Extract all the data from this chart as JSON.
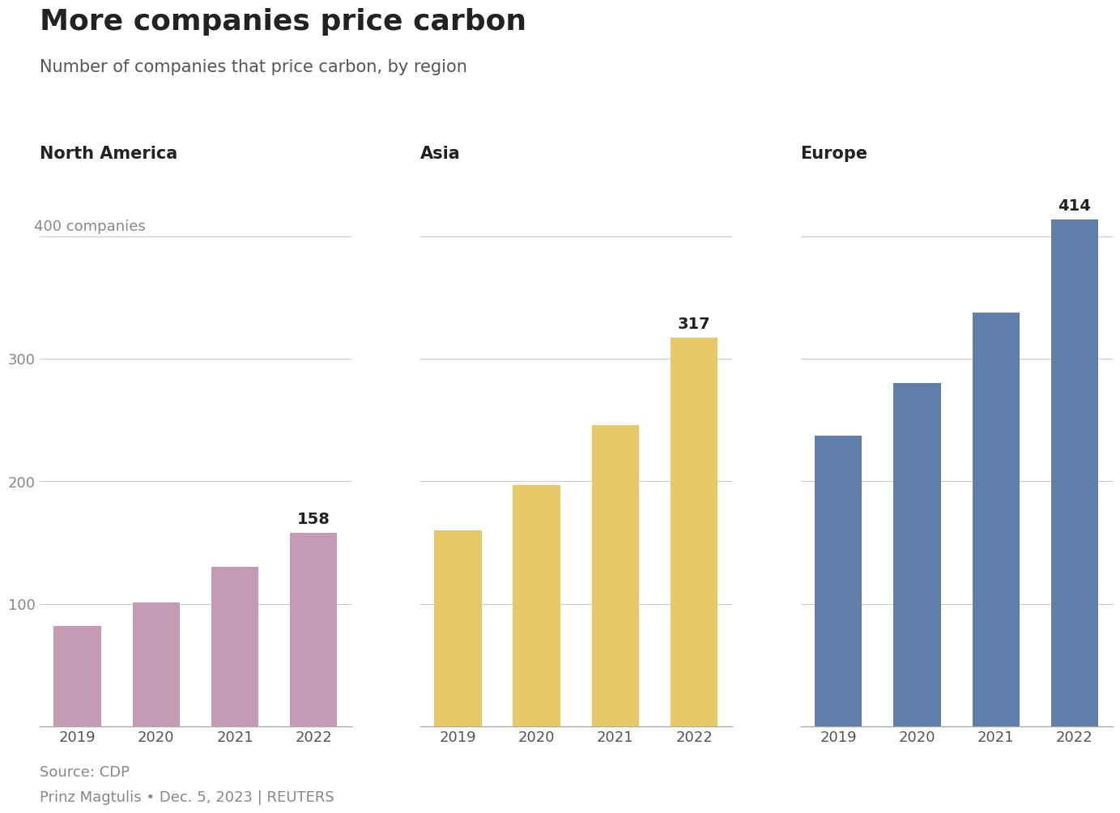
{
  "title": "More companies price carbon",
  "subtitle": "Number of companies that price carbon, by region",
  "source": "Source: CDP",
  "author": "Prinz Magtulis • Dec. 5, 2023 | REUTERS",
  "regions": [
    "North America",
    "Asia",
    "Europe"
  ],
  "years": [
    "2019",
    "2020",
    "2021",
    "2022"
  ],
  "values": {
    "North America": [
      82,
      101,
      130,
      158
    ],
    "Asia": [
      160,
      197,
      246,
      317
    ],
    "Europe": [
      237,
      280,
      338,
      414
    ]
  },
  "bar_colors": {
    "North America": "#c49ab5",
    "Asia": "#e8c96a",
    "Europe": "#5f7fa8"
  },
  "ylim": [
    0,
    440
  ],
  "yticks": [
    100,
    200,
    300,
    400
  ],
  "background_color": "#ffffff",
  "title_fontsize": 26,
  "subtitle_fontsize": 15,
  "region_label_fontsize": 15,
  "tick_fontsize": 13,
  "bar_label_fontsize": 14,
  "source_fontsize": 13,
  "grid_color": "#cccccc",
  "tick_color": "#888888",
  "label_color": "#222222",
  "footer_color": "#888888"
}
